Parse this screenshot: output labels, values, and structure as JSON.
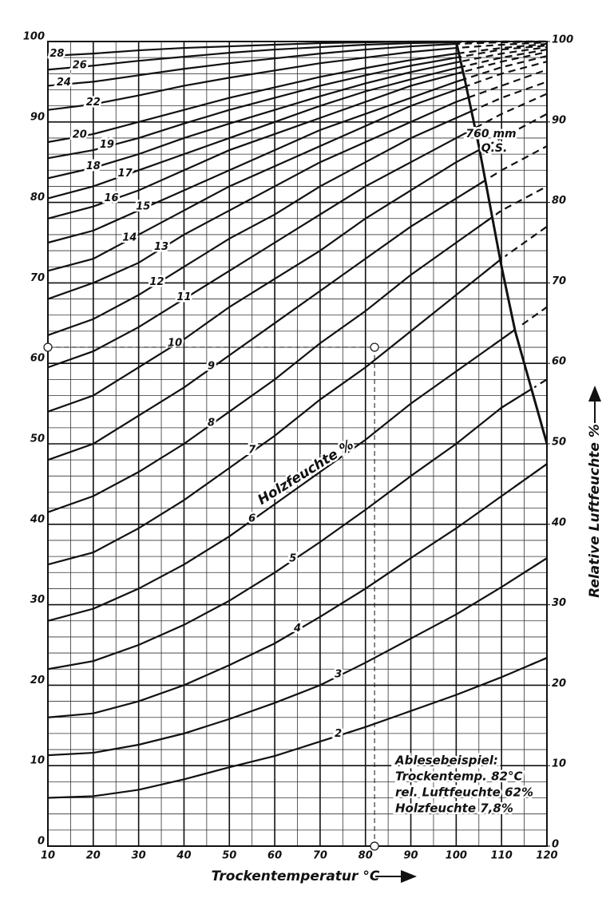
{
  "chart_data": {
    "type": "line",
    "x_label": "Trockentemperatur °C",
    "y2_label": "Relative Luftfeuchte %",
    "annotation": "Holzfeuchte %",
    "xlim": [
      10,
      120
    ],
    "xticks": [
      10,
      20,
      30,
      40,
      50,
      60,
      70,
      80,
      90,
      100,
      110,
      120
    ],
    "ylim": [
      0,
      100
    ],
    "yticks": [
      0,
      10,
      20,
      30,
      40,
      50,
      60,
      70,
      80,
      90,
      100
    ],
    "y2lim": [
      0,
      100
    ],
    "y2ticks": [
      0,
      10,
      20,
      30,
      40,
      50,
      60,
      70,
      80,
      90,
      100
    ],
    "grid": true,
    "minor_grid": {
      "x": 5,
      "y": 2
    },
    "color": "#111111",
    "x": [
      10,
      20,
      30,
      40,
      50,
      60,
      70,
      80,
      90,
      100,
      110,
      120
    ],
    "series": [
      {
        "name": "2",
        "values": [
          6,
          6.2,
          7,
          8.3,
          9.8,
          11.2,
          13,
          14.8,
          16.8,
          18.8,
          21,
          23.4
        ]
      },
      {
        "name": "3",
        "values": [
          11.3,
          11.6,
          12.6,
          14,
          15.8,
          17.8,
          20,
          22.8,
          25.8,
          28.8,
          32.2,
          35.8
        ]
      },
      {
        "name": "4",
        "values": [
          16,
          16.5,
          18,
          20,
          22.5,
          25.2,
          28.5,
          32,
          35.8,
          39.5,
          43.5,
          47.5
        ]
      },
      {
        "name": "5",
        "values": [
          22,
          23,
          25,
          27.5,
          30.5,
          34,
          37.8,
          41.8,
          46,
          50,
          54.5,
          58
        ]
      },
      {
        "name": "6",
        "values": [
          28,
          29.5,
          32,
          35,
          38.5,
          42.5,
          46.5,
          50.5,
          55,
          59,
          63,
          67
        ]
      },
      {
        "name": "7",
        "values": [
          35,
          36.5,
          39.5,
          43,
          47,
          51,
          55.5,
          59.5,
          64,
          68.5,
          73,
          77
        ]
      },
      {
        "name": "8",
        "values": [
          41.5,
          43.5,
          46.5,
          50,
          54,
          58,
          62.5,
          66.5,
          71,
          75,
          79,
          82
        ]
      },
      {
        "name": "9",
        "values": [
          48,
          50,
          53.5,
          57,
          61,
          65,
          69,
          73,
          77,
          80.5,
          84,
          87
        ]
      },
      {
        "name": "10",
        "values": [
          54,
          56,
          59.5,
          63,
          67,
          70.5,
          74,
          78,
          81.5,
          85,
          88,
          91
        ]
      },
      {
        "name": "11",
        "values": [
          59.5,
          61.5,
          64.5,
          68,
          71.5,
          75,
          78.5,
          82,
          85,
          88,
          91,
          93.5
        ]
      },
      {
        "name": "12",
        "values": [
          63.5,
          65.5,
          68.5,
          72,
          75.5,
          78.5,
          82,
          85,
          88,
          90.5,
          93,
          95
        ]
      },
      {
        "name": "13",
        "values": [
          68,
          70,
          72.5,
          76,
          79,
          82,
          85,
          87.5,
          90,
          92.5,
          94.5,
          96.5
        ]
      },
      {
        "name": "14",
        "values": [
          71.5,
          73,
          76,
          79,
          82,
          84.5,
          87,
          89.5,
          92,
          94,
          96,
          97.5
        ]
      },
      {
        "name": "15",
        "values": [
          75,
          76.5,
          79,
          81.5,
          84,
          86.5,
          89,
          91,
          93,
          95,
          96.8,
          98.2
        ]
      },
      {
        "name": "16",
        "values": [
          78,
          79.5,
          81.5,
          84,
          86.5,
          88.5,
          90.5,
          92.5,
          94.5,
          96,
          97.5,
          98.7
        ]
      },
      {
        "name": "17",
        "values": [
          80.5,
          82,
          84,
          86,
          88,
          90,
          92,
          93.8,
          95.3,
          96.7,
          98,
          99
        ]
      },
      {
        "name": "18",
        "values": [
          83,
          84.3,
          86,
          88,
          89.8,
          91.5,
          93.2,
          94.8,
          96.2,
          97.4,
          98.5,
          99.3
        ]
      },
      {
        "name": "19",
        "values": [
          85.5,
          86.5,
          88,
          89.8,
          91.5,
          93,
          94.5,
          95.8,
          97,
          98,
          99,
          99.5
        ]
      },
      {
        "name": "20",
        "values": [
          87.5,
          88.5,
          90,
          91.5,
          93,
          94.3,
          95.6,
          96.7,
          97.7,
          98.5,
          99.2,
          99.7
        ]
      },
      {
        "name": "22",
        "values": [
          91.5,
          92.2,
          93.3,
          94.5,
          95.5,
          96.4,
          97.3,
          98,
          98.7,
          99.2,
          99.6,
          99.9
        ]
      },
      {
        "name": "24",
        "values": [
          94.5,
          95,
          95.8,
          96.6,
          97.3,
          97.9,
          98.5,
          99,
          99.4,
          99.7,
          99.9,
          100
        ]
      },
      {
        "name": "26",
        "values": [
          96.5,
          97,
          97.6,
          98.1,
          98.6,
          99,
          99.3,
          99.6,
          99.8,
          99.9,
          100,
          100
        ]
      },
      {
        "name": "28",
        "values": [
          98.2,
          98.5,
          98.9,
          99.2,
          99.4,
          99.6,
          99.8,
          99.9,
          100,
          100,
          100,
          100
        ]
      }
    ],
    "boundary": {
      "label_lines": [
        "760 mm",
        "Q.S."
      ],
      "x": [
        100,
        102,
        105,
        108,
        110,
        113,
        116,
        120
      ],
      "values": [
        100,
        95,
        87,
        78,
        72,
        64,
        58,
        50
      ]
    },
    "example": {
      "x": 82,
      "y": 62
    },
    "example_text": [
      "Ablesebeispiel:",
      "Trockentemp.  82°C",
      "rel. Luftfeuchte 62%",
      "Holzfeuchte   7,8%"
    ]
  }
}
